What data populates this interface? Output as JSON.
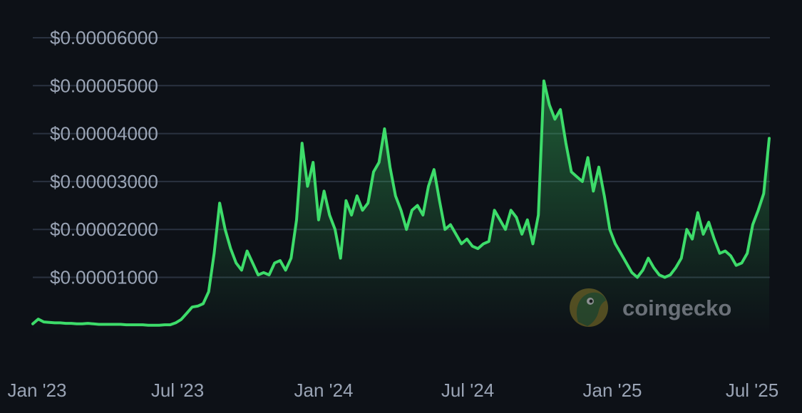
{
  "chart_data": {
    "type": "area",
    "title": "",
    "xlabel": "",
    "ylabel": "",
    "x_tick_labels": [
      "Jan '23",
      "Jul '23",
      "Jan '24",
      "Jul '24",
      "Jan '25",
      "Jul '25"
    ],
    "y_tick_labels": [
      "$0.00001000",
      "$0.00002000",
      "$0.00003000",
      "$0.00004000",
      "$0.00005000",
      "$0.00006000"
    ],
    "y_ticks": [
      1e-05,
      2e-05,
      3e-05,
      4e-05,
      5e-05,
      6e-05
    ],
    "ylim": [
      -1.4e-06,
      6.12e-05
    ],
    "grid": true,
    "line_color": "#3ddc6a",
    "series": [
      {
        "values": [
          3e-07,
          1.3e-06,
          7e-07,
          6e-07,
          5e-07,
          5e-07,
          4e-07,
          4e-07,
          3e-07,
          3e-07,
          4e-07,
          3e-07,
          2e-07,
          2e-07,
          2e-07,
          2e-07,
          2e-07,
          1e-07,
          1e-07,
          1e-07,
          1e-07,
          0.0,
          0.0,
          0.0,
          1e-07,
          1e-07,
          5e-07,
          1.2e-06,
          2.5e-06,
          3.8e-06,
          4e-06,
          4.5e-06,
          7e-06,
          1.5e-05,
          2.55e-05,
          2e-05,
          1.6e-05,
          1.3e-05,
          1.15e-05,
          1.55e-05,
          1.3e-05,
          1.05e-05,
          1.1e-05,
          1.05e-05,
          1.3e-05,
          1.35e-05,
          1.15e-05,
          1.4e-05,
          2.2e-05,
          3.8e-05,
          2.9e-05,
          3.4e-05,
          2.2e-05,
          2.8e-05,
          2.3e-05,
          2e-05,
          1.4e-05,
          2.6e-05,
          2.3e-05,
          2.7e-05,
          2.4e-05,
          2.55e-05,
          3.2e-05,
          3.4e-05,
          4.1e-05,
          3.3e-05,
          2.7e-05,
          2.4e-05,
          2e-05,
          2.4e-05,
          2.5e-05,
          2.3e-05,
          2.9e-05,
          3.25e-05,
          2.6e-05,
          2e-05,
          2.1e-05,
          1.9e-05,
          1.7e-05,
          1.8e-05,
          1.65e-05,
          1.6e-05,
          1.7e-05,
          1.75e-05,
          2.4e-05,
          2.2e-05,
          2e-05,
          2.4e-05,
          2.25e-05,
          1.9e-05,
          2.2e-05,
          1.7e-05,
          2.3e-05,
          5.1e-05,
          4.6e-05,
          4.3e-05,
          4.5e-05,
          3.8e-05,
          3.2e-05,
          3.1e-05,
          3e-05,
          3.5e-05,
          2.8e-05,
          3.3e-05,
          2.7e-05,
          2e-05,
          1.7e-05,
          1.5e-05,
          1.3e-05,
          1.1e-05,
          1e-05,
          1.15e-05,
          1.4e-05,
          1.2e-05,
          1.05e-05,
          1e-05,
          1.05e-05,
          1.2e-05,
          1.4e-05,
          2e-05,
          1.8e-05,
          2.35e-05,
          1.9e-05,
          2.15e-05,
          1.8e-05,
          1.5e-05,
          1.55e-05,
          1.45e-05,
          1.25e-05,
          1.3e-05,
          1.5e-05,
          2.1e-05,
          2.4e-05,
          2.75e-05,
          3.9e-05
        ]
      }
    ],
    "watermark": "coingecko"
  }
}
